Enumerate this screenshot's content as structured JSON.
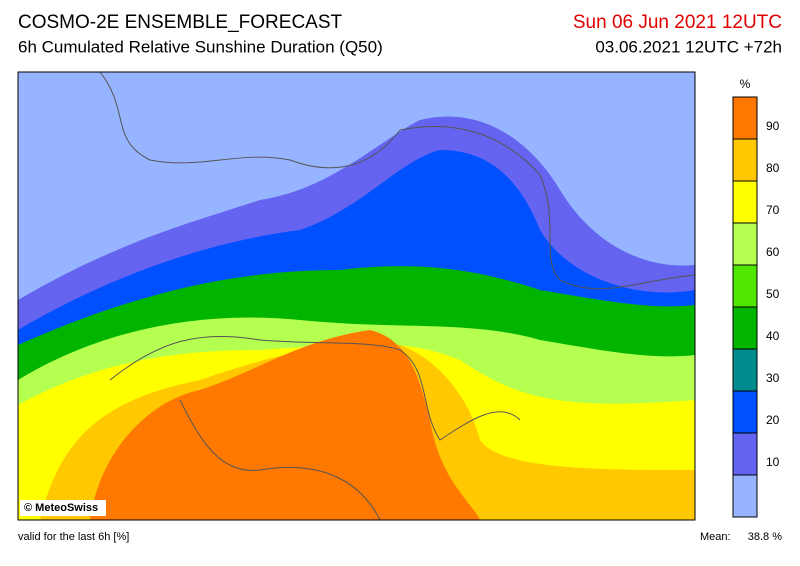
{
  "header": {
    "title": "COSMO-2E ENSEMBLE_FORECAST",
    "subtitle": "6h Cumulated Relative Sunshine Duration (Q50)",
    "valid_time": "Sun 06 Jun 2021 12UTC",
    "run": "03.06.2021 12UTC +72h"
  },
  "map": {
    "credit": "© MeteoSwiss"
  },
  "colorbar": {
    "unit": "%",
    "lim": [
      0,
      100
    ],
    "ticks": [
      10,
      20,
      30,
      40,
      50,
      60,
      70,
      80,
      90
    ],
    "colors": [
      "#96b4ff",
      "#6464f0",
      "#0050ff",
      "#008c8c",
      "#00b400",
      "#50e600",
      "#b4ff50",
      "#ffff00",
      "#ffc800",
      "#ff7800"
    ]
  },
  "footer": {
    "note": "valid for the last 6h [%]",
    "mean_label": "Mean:",
    "mean_value": "38.8 %"
  }
}
